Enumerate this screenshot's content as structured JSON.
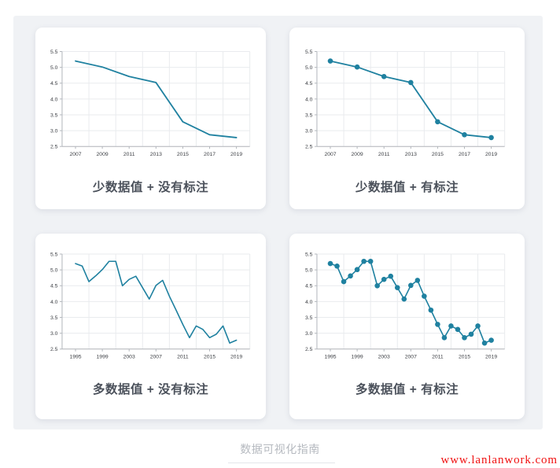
{
  "page": {
    "background": "#ffffff",
    "panel_background": "#f0f2f5",
    "card_background": "#ffffff"
  },
  "footer": {
    "caption": "数据可视化指南"
  },
  "watermark": {
    "text": "www.lanlanwork.com",
    "color": "#f01212"
  },
  "chart_data": [
    {
      "type": "line",
      "title": "少数据值 + 没有标注",
      "x": [
        2007,
        2009,
        2011,
        2013,
        2015,
        2017,
        2019
      ],
      "values": [
        5.2,
        5.01,
        4.71,
        4.52,
        3.28,
        2.87,
        2.78
      ],
      "markers": false,
      "line_color": "#1f81a0",
      "xticks": [
        2007,
        2009,
        2011,
        2013,
        2015,
        2017,
        2019
      ],
      "xtick_labels": [
        "2007",
        "2009",
        "2011",
        "2013",
        "2015",
        "2017",
        "2019"
      ],
      "yticks": [
        2.5,
        3.0,
        3.5,
        4.0,
        4.5,
        5.0,
        5.5
      ],
      "ytick_labels": [
        "2.5",
        "3.0",
        "3.5",
        "4.0",
        "4.5",
        "5.0",
        "5.5"
      ],
      "xlim": [
        2006,
        2020
      ],
      "ylim": [
        2.5,
        5.5
      ],
      "grid": true,
      "legend": "none"
    },
    {
      "type": "line",
      "title": "少数据值 + 有标注",
      "x": [
        2007,
        2009,
        2011,
        2013,
        2015,
        2017,
        2019
      ],
      "values": [
        5.2,
        5.01,
        4.71,
        4.52,
        3.28,
        2.87,
        2.78
      ],
      "markers": true,
      "line_color": "#1f81a0",
      "xticks": [
        2007,
        2009,
        2011,
        2013,
        2015,
        2017,
        2019
      ],
      "xtick_labels": [
        "2007",
        "2009",
        "2011",
        "2013",
        "2015",
        "2017",
        "2019"
      ],
      "yticks": [
        2.5,
        3.0,
        3.5,
        4.0,
        4.5,
        5.0,
        5.5
      ],
      "ytick_labels": [
        "2.5",
        "3.0",
        "3.5",
        "4.0",
        "4.5",
        "5.0",
        "5.5"
      ],
      "xlim": [
        2006,
        2020
      ],
      "ylim": [
        2.5,
        5.5
      ],
      "grid": true,
      "legend": "none"
    },
    {
      "type": "line",
      "title": "多数据值 + 没有标注",
      "x": [
        1995,
        1996,
        1997,
        1998,
        1999,
        2000,
        2001,
        2002,
        2003,
        2004,
        2005,
        2006,
        2007,
        2008,
        2009,
        2010,
        2011,
        2012,
        2013,
        2014,
        2015,
        2016,
        2017,
        2018,
        2019
      ],
      "values": [
        5.2,
        5.12,
        4.63,
        4.81,
        5.01,
        5.27,
        5.27,
        4.5,
        4.7,
        4.8,
        4.44,
        4.08,
        4.51,
        4.67,
        4.17,
        3.73,
        3.28,
        2.86,
        3.23,
        3.12,
        2.86,
        2.97,
        3.23,
        2.69,
        2.78
      ],
      "markers": false,
      "line_color": "#1f81a0",
      "xticks": [
        1995,
        1999,
        2003,
        2007,
        2011,
        2015,
        2019
      ],
      "xtick_labels": [
        "1995",
        "1999",
        "2003",
        "2007",
        "2011",
        "2015",
        "2019"
      ],
      "yticks": [
        2.5,
        3.0,
        3.5,
        4.0,
        4.5,
        5.0,
        5.5
      ],
      "ytick_labels": [
        "2.5",
        "3.0",
        "3.5",
        "4.0",
        "4.5",
        "5.0",
        "5.5"
      ],
      "xlim": [
        1993,
        2021
      ],
      "ylim": [
        2.5,
        5.5
      ],
      "grid": true,
      "legend": "none"
    },
    {
      "type": "line",
      "title": "多数据值 + 有标注",
      "x": [
        1995,
        1996,
        1997,
        1998,
        1999,
        2000,
        2001,
        2002,
        2003,
        2004,
        2005,
        2006,
        2007,
        2008,
        2009,
        2010,
        2011,
        2012,
        2013,
        2014,
        2015,
        2016,
        2017,
        2018,
        2019
      ],
      "values": [
        5.2,
        5.12,
        4.63,
        4.81,
        5.01,
        5.27,
        5.27,
        4.5,
        4.7,
        4.8,
        4.44,
        4.08,
        4.51,
        4.67,
        4.17,
        3.73,
        3.28,
        2.86,
        3.23,
        3.12,
        2.86,
        2.97,
        3.23,
        2.69,
        2.78
      ],
      "markers": true,
      "line_color": "#1f81a0",
      "xticks": [
        1995,
        1999,
        2003,
        2007,
        2011,
        2015,
        2019
      ],
      "xtick_labels": [
        "1995",
        "1999",
        "2003",
        "2007",
        "2011",
        "2015",
        "2019"
      ],
      "yticks": [
        2.5,
        3.0,
        3.5,
        4.0,
        4.5,
        5.0,
        5.5
      ],
      "ytick_labels": [
        "2.5",
        "3.0",
        "3.5",
        "4.0",
        "4.5",
        "5.0",
        "5.5"
      ],
      "xlim": [
        1993,
        2021
      ],
      "ylim": [
        2.5,
        5.5
      ],
      "grid": true,
      "legend": "none"
    }
  ]
}
